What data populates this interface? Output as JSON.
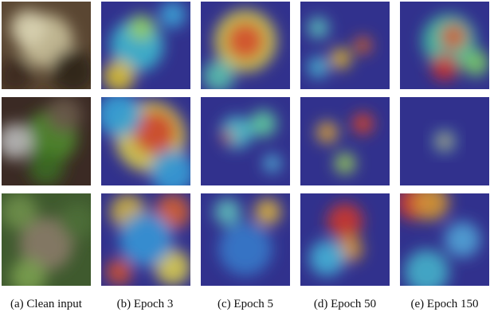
{
  "captions": [
    "(a) Clean input",
    "(b) Epoch 3",
    "(c) Epoch 5",
    "(d) Epoch 50",
    "(e) Epoch 150"
  ]
}
